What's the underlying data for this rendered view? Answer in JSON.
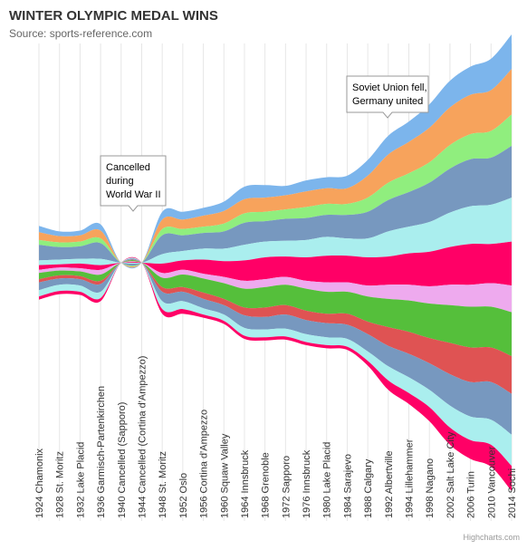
{
  "chart_data": {
    "type": "streamgraph",
    "title": "WINTER OLYMPIC MEDAL WINS",
    "subtitle": "Source: sports-reference.com",
    "credits": "Highcharts.com",
    "categories": [
      "1924 Chamonix",
      "1928 St. Moritz",
      "1932 Lake Placid",
      "1936 Garmisch-Partenkirchen",
      "1940 Cancelled (Sapporo)",
      "1944 Cancelled (Cortina d'Ampezzo)",
      "1948 St. Moritz",
      "1952 Oslo",
      "1956 Cortina d'Ampezzo",
      "1960 Squaw Valley",
      "1964 Innsbruck",
      "1968 Grenoble",
      "1972 Sapporo",
      "1976 Innsbruck",
      "1980 Lake Placid",
      "1984 Sarajevo",
      "1988 Calgary",
      "1992 Albertville",
      "1994 Lillehammer",
      "1998 Nagano",
      "2002 Salt Lake City",
      "2006 Turin",
      "2010 Vancouver",
      "2014 Sochi"
    ],
    "series": [
      {
        "color": "#7cb5ec",
        "values": [
          4,
          3,
          3,
          4,
          0,
          0,
          5,
          5,
          5,
          6,
          8,
          8,
          6,
          7,
          7,
          8,
          10,
          12,
          13,
          15,
          17,
          18,
          20,
          22
        ]
      },
      {
        "color": "#f7a35c",
        "values": [
          5,
          4,
          4,
          5,
          0,
          0,
          6,
          6,
          7,
          8,
          9,
          9,
          9,
          10,
          10,
          10,
          14,
          18,
          20,
          22,
          24,
          25,
          26,
          29
        ]
      },
      {
        "color": "#90ee7e",
        "values": [
          3,
          3,
          3,
          3,
          0,
          0,
          4,
          4,
          4,
          5,
          6,
          6,
          6,
          7,
          7,
          7,
          9,
          11,
          12,
          13,
          15,
          16,
          17,
          20
        ]
      },
      {
        "color": "#7798bf",
        "values": [
          10,
          8,
          8,
          10,
          0,
          0,
          12,
          10,
          10,
          11,
          14,
          13,
          14,
          14,
          14,
          15,
          17,
          20,
          22,
          25,
          28,
          30,
          30,
          33
        ]
      },
      {
        "color": "#aaeeee",
        "values": [
          3,
          3,
          3,
          4,
          0,
          0,
          6,
          6,
          7,
          8,
          10,
          10,
          10,
          11,
          12,
          11,
          12,
          16,
          17,
          19,
          22,
          24,
          25,
          28
        ]
      },
      {
        "color": "#ff0066",
        "values": [
          3,
          2,
          3,
          3,
          0,
          0,
          6,
          6,
          9,
          10,
          13,
          14,
          13,
          15,
          17,
          17,
          18,
          18,
          20,
          22,
          24,
          26,
          25,
          28
        ]
      },
      {
        "color": "#eeaaee",
        "values": [
          2,
          2,
          2,
          3,
          0,
          0,
          3,
          3,
          3,
          4,
          5,
          5,
          5,
          5,
          6,
          6,
          7,
          9,
          10,
          11,
          13,
          14,
          15,
          17
        ]
      },
      {
        "color": "#55bf3b",
        "values": [
          4,
          3,
          3,
          4,
          0,
          0,
          6,
          8,
          9,
          10,
          12,
          13,
          13,
          14,
          14,
          14,
          16,
          18,
          20,
          22,
          24,
          26,
          26,
          28
        ]
      },
      {
        "color": "#df5353",
        "values": [
          2,
          2,
          2,
          2,
          0,
          0,
          3,
          3,
          4,
          4,
          5,
          6,
          6,
          6,
          6,
          7,
          8,
          12,
          14,
          16,
          20,
          22,
          22,
          24
        ]
      },
      {
        "color": "#7798bf",
        "values": [
          5,
          4,
          4,
          5,
          0,
          0,
          6,
          6,
          6,
          6,
          8,
          8,
          9,
          9,
          9,
          9,
          11,
          13,
          15,
          17,
          20,
          22,
          24,
          26
        ]
      },
      {
        "color": "#aaeeee",
        "values": [
          4,
          4,
          4,
          4,
          0,
          0,
          5,
          5,
          4,
          4,
          5,
          5,
          5,
          5,
          5,
          5,
          6,
          9,
          10,
          11,
          14,
          15,
          16,
          20
        ]
      },
      {
        "color": "#ff0066",
        "values": [
          2,
          2,
          2,
          2,
          0,
          0,
          3,
          3,
          2,
          2,
          2,
          2,
          2,
          2,
          2,
          2,
          3,
          6,
          7,
          9,
          11,
          12,
          14,
          16
        ]
      }
    ],
    "annotations": [
      {
        "lines": [
          "Cancelled",
          "during",
          "World War II"
        ]
      },
      {
        "lines": [
          "Soviet Union fell,",
          "Germany united"
        ]
      }
    ]
  }
}
